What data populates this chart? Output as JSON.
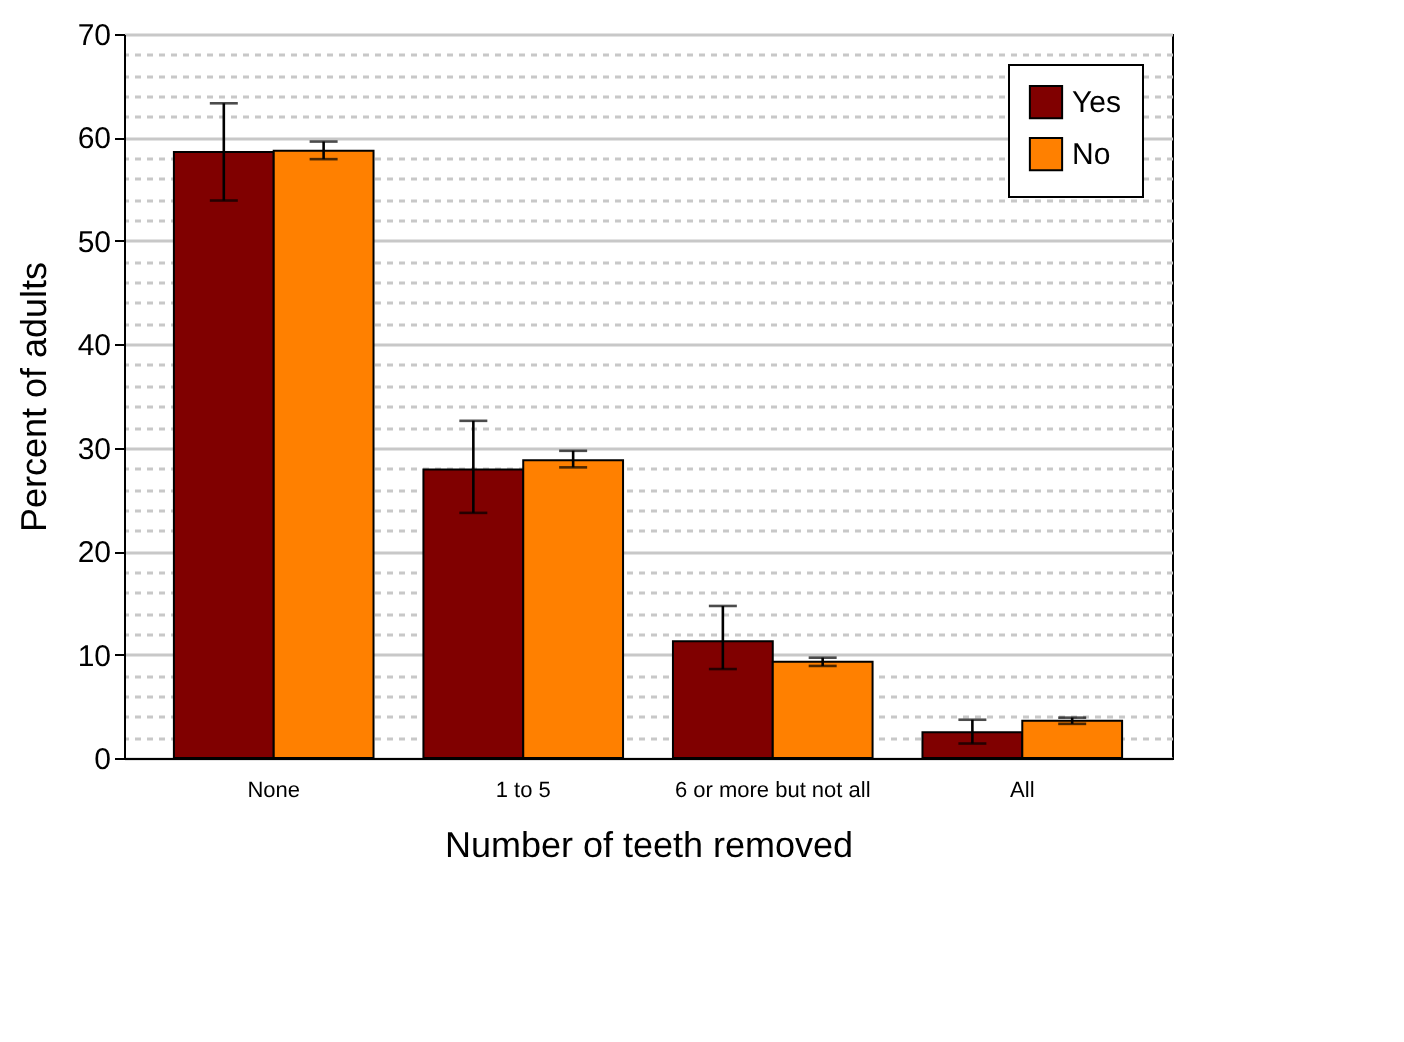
{
  "chart_data": {
    "type": "bar",
    "xlabel": "Number of teeth removed",
    "ylabel": "Percent of adults",
    "categories": [
      "None",
      "1 to 5",
      "6 or more but not all",
      "All"
    ],
    "series": [
      {
        "name": "Yes",
        "color": "#800000",
        "values": [
          58.6,
          27.9,
          11.3,
          2.5
        ],
        "errors": [
          [
            53.9,
            63.3
          ],
          [
            23.7,
            32.6
          ],
          [
            8.6,
            14.7
          ],
          [
            1.4,
            3.7
          ]
        ]
      },
      {
        "name": "No",
        "color": "#ff8000",
        "values": [
          58.7,
          28.8,
          9.3,
          3.6
        ],
        "errors": [
          [
            57.9,
            59.6
          ],
          [
            28.1,
            29.7
          ],
          [
            8.9,
            9.7
          ],
          [
            3.3,
            3.9
          ]
        ]
      }
    ],
    "ylim": [
      0,
      70
    ],
    "yticks": [
      0,
      {
        "value": 2,
        "label": null
      },
      {
        "value": 4,
        "label": null
      },
      {
        "value": 6,
        "label": null
      },
      {
        "value": 8,
        "label": null
      },
      10,
      {
        "value": 12,
        "label": null
      },
      {
        "value": 14,
        "label": null
      },
      {
        "value": 16,
        "label": null
      },
      {
        "value": 18,
        "label": null
      },
      20,
      {
        "value": 22,
        "label": null
      },
      {
        "value": 24,
        "label": null
      },
      {
        "value": 26,
        "label": null
      },
      {
        "value": 28,
        "label": null
      },
      30,
      {
        "value": 32,
        "label": null
      },
      {
        "value": 34,
        "label": null
      },
      {
        "value": 36,
        "label": null
      },
      {
        "value": 38,
        "label": null
      },
      40,
      {
        "value": 42,
        "label": null
      },
      {
        "value": 44,
        "label": null
      },
      {
        "value": 46,
        "label": null
      },
      {
        "value": 48,
        "label": null
      },
      50,
      {
        "value": 52,
        "label": null
      },
      {
        "value": 54,
        "label": null
      },
      {
        "value": 56,
        "label": null
      },
      {
        "value": 58,
        "label": null
      },
      60,
      {
        "value": 62,
        "label": null
      },
      {
        "value": 64,
        "label": null
      },
      {
        "value": 66,
        "label": null
      },
      {
        "value": 68,
        "label": null
      },
      70
    ],
    "grid": "y",
    "legend": "top right"
  }
}
